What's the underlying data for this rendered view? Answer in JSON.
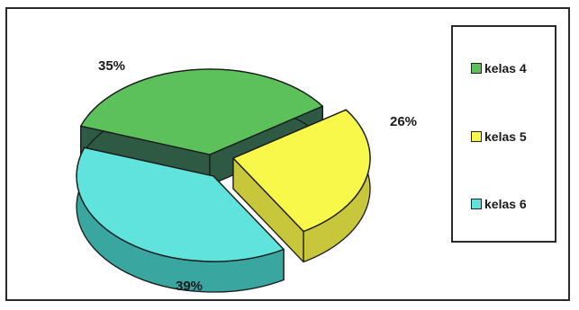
{
  "chart_data": {
    "type": "pie",
    "three_d": true,
    "exploded": true,
    "categories": [
      "kelas 4",
      "kelas 5",
      "kelas 6"
    ],
    "values": [
      35,
      26,
      39
    ],
    "labels": [
      "35%",
      "26%",
      "39%"
    ],
    "colors": [
      "#5cc15a",
      "#f8f84a",
      "#5fe3dc"
    ],
    "side_colors": [
      "#2e5a44",
      "#c8c63a",
      "#3aa6a0"
    ],
    "legend_position": "right",
    "title": ""
  }
}
